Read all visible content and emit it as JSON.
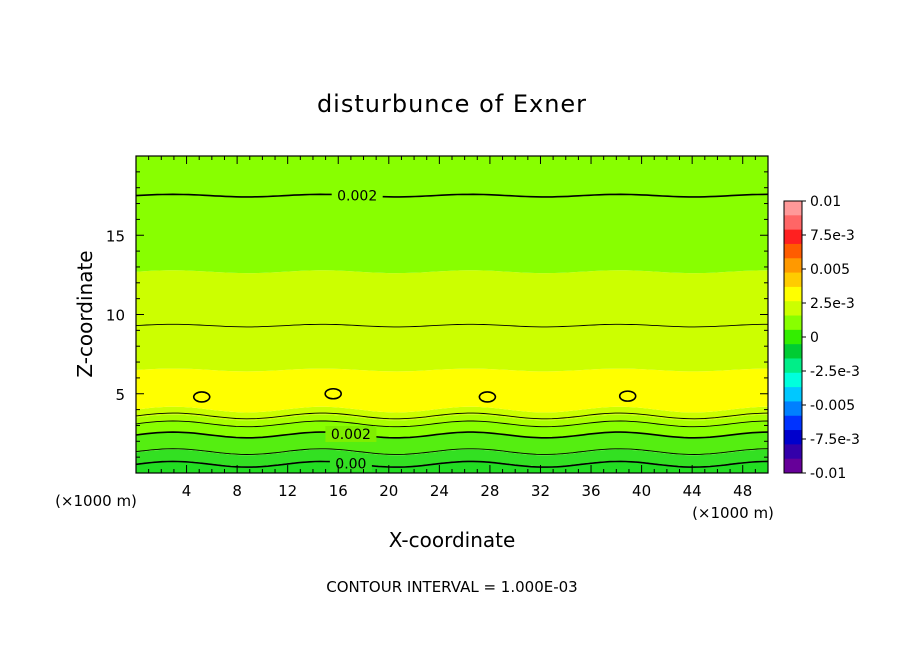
{
  "chart_data": {
    "type": "heatmap",
    "title": "disturbunce of Exner",
    "xlabel": "X-coordinate",
    "ylabel": "Z-coordinate",
    "x_unit_left": "(×1000 m)",
    "x_unit_right": "(×1000 m)",
    "xlim": [
      0,
      50
    ],
    "ylim": [
      0,
      20
    ],
    "xticks": [
      4,
      8,
      12,
      16,
      20,
      24,
      28,
      32,
      36,
      40,
      44,
      48
    ],
    "yticks": [
      5,
      10,
      15
    ],
    "footer": "CONTOUR INTERVAL = 1.000E-03",
    "colorbar": {
      "labels": [
        "0.01",
        "7.5e-3",
        "0.005",
        "2.5e-3",
        "0",
        "-2.5e-3",
        "-0.005",
        "-7.5e-3",
        "-0.01"
      ],
      "label_values": [
        0.01,
        0.0075,
        0.005,
        0.0025,
        0,
        -0.0025,
        -0.005,
        -0.0075,
        -0.01
      ],
      "colors": [
        "#ff9999",
        "#ff6666",
        "#ff2020",
        "#ff5c00",
        "#ff9900",
        "#ffcc00",
        "#ffff00",
        "#ccff00",
        "#88ff00",
        "#33ee00",
        "#00cc33",
        "#00ee88",
        "#00ffdd",
        "#00c8ff",
        "#0080ff",
        "#0033ff",
        "#0000cc",
        "#3300aa",
        "#660099"
      ]
    },
    "bands": [
      {
        "z_min": 0.0,
        "z_max": 0.6,
        "value": 0.0004,
        "color": "#22dd22"
      },
      {
        "z_min": 0.6,
        "z_max": 1.3,
        "value": 0.0007,
        "color": "#33e022"
      },
      {
        "z_min": 1.3,
        "z_max": 2.4,
        "value": 0.0012,
        "color": "#55ee11"
      },
      {
        "z_min": 2.4,
        "z_max": 3.1,
        "value": 0.0019,
        "color": "#88ff00"
      },
      {
        "z_min": 3.1,
        "z_max": 3.5,
        "value": 0.0023,
        "color": "#aaff00"
      },
      {
        "z_min": 3.5,
        "z_max": 4.0,
        "value": 0.0026,
        "color": "#ccff00"
      },
      {
        "z_min": 4.0,
        "z_max": 6.5,
        "value": 0.0031,
        "color": "#ffff00"
      },
      {
        "z_min": 6.5,
        "z_max": 12.7,
        "value": 0.0026,
        "color": "#ccff00"
      },
      {
        "z_min": 12.7,
        "z_max": 20.0,
        "value": 0.0019,
        "color": "#88ff00"
      }
    ],
    "contours": [
      {
        "value": 0.0,
        "label": "0.00",
        "z": 0.55,
        "label_x": 17.0
      },
      {
        "value": 0.001,
        "label": "",
        "z": 1.35,
        "label_x": null
      },
      {
        "value": 0.002,
        "label": "0.002",
        "z": 2.4,
        "label_x": 17.0
      },
      {
        "value": 0.0025,
        "label": "",
        "z": 3.1,
        "label_x": null
      },
      {
        "value": 0.003,
        "label": "",
        "z": 3.6,
        "label_x": null
      },
      {
        "value": 0.0025,
        "label": "",
        "z": 9.3,
        "label_x": null
      },
      {
        "value": 0.002,
        "label": "0.002",
        "z": 17.5,
        "label_x": 17.5
      }
    ],
    "closed_contours": [
      {
        "x": 5.2,
        "z": 4.8,
        "value": 0.0035
      },
      {
        "x": 15.6,
        "z": 5.0,
        "value": 0.0035
      },
      {
        "x": 27.8,
        "z": 4.8,
        "value": 0.0035
      },
      {
        "x": 38.9,
        "z": 4.85,
        "value": 0.0035
      }
    ]
  }
}
